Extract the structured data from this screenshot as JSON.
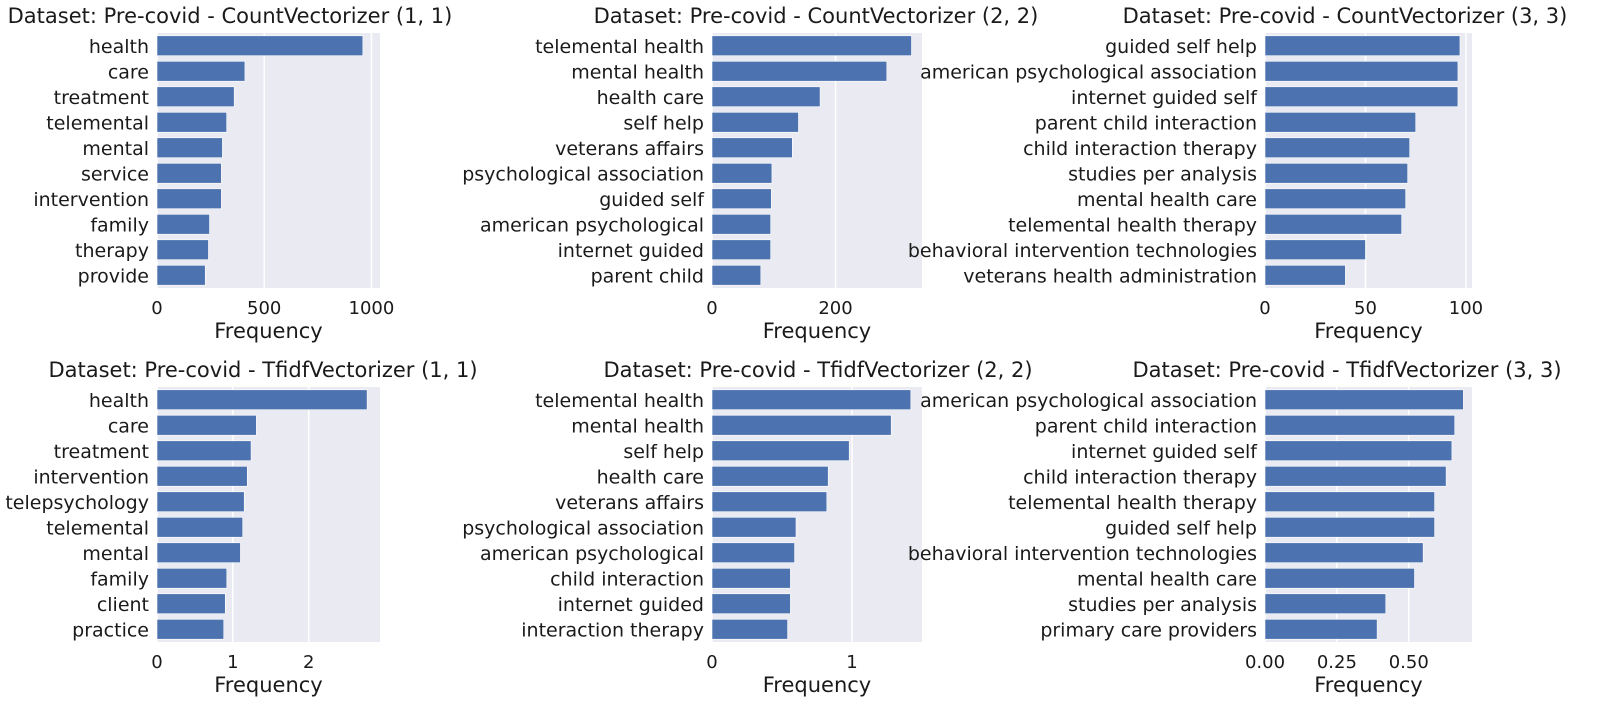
{
  "chart_data": [
    {
      "type": "bar",
      "orientation": "horizontal",
      "title": "Dataset: Pre-covid - CountVectorizer (1, 1)",
      "xlabel": "Frequency",
      "ylabel": "",
      "xlim": [
        0,
        1040
      ],
      "xticks": [
        0,
        500,
        1000
      ],
      "xtick_labels": [
        "0",
        "500",
        "1000"
      ],
      "categories": [
        "health",
        "care",
        "treatment",
        "telemental",
        "mental",
        "service",
        "intervention",
        "family",
        "therapy",
        "provide"
      ],
      "values": [
        960,
        410,
        360,
        325,
        305,
        300,
        300,
        245,
        240,
        225
      ],
      "grid": true
    },
    {
      "type": "bar",
      "orientation": "horizontal",
      "title": "Dataset: Pre-covid - CountVectorizer (2, 2)",
      "xlabel": "Frequency",
      "ylabel": "",
      "xlim": [
        0,
        340
      ],
      "xticks": [
        0,
        200
      ],
      "xtick_labels": [
        "0",
        "200"
      ],
      "categories": [
        "telemental health",
        "mental health",
        "health care",
        "self help",
        "veterans affairs",
        "psychological association",
        "guided self",
        "american psychological",
        "internet guided",
        "parent child"
      ],
      "values": [
        323,
        283,
        175,
        140,
        130,
        97,
        96,
        95,
        95,
        79
      ],
      "grid": true
    },
    {
      "type": "bar",
      "orientation": "horizontal",
      "title": "Dataset: Pre-covid - CountVectorizer (3, 3)",
      "xlabel": "Frequency",
      "ylabel": "",
      "xlim": [
        0,
        103
      ],
      "xticks": [
        0,
        50,
        100
      ],
      "xtick_labels": [
        "0",
        "50",
        "100"
      ],
      "categories": [
        "guided self help",
        "american psychological association",
        "internet guided self",
        "parent child interaction",
        "child interaction therapy",
        "studies per analysis",
        "mental health care",
        "telemental health therapy",
        "behavioral intervention technologies",
        "veterans health administration"
      ],
      "values": [
        97,
        96,
        96,
        75,
        72,
        71,
        70,
        68,
        50,
        40
      ],
      "grid": true
    },
    {
      "type": "bar",
      "orientation": "horizontal",
      "title": "Dataset: Pre-covid - TfidfVectorizer (1, 1)",
      "xlabel": "Frequency",
      "ylabel": "",
      "xlim": [
        0,
        2.94
      ],
      "xticks": [
        0,
        1,
        2
      ],
      "xtick_labels": [
        "0",
        "1",
        "2"
      ],
      "categories": [
        "health",
        "care",
        "treatment",
        "intervention",
        "telepsychology",
        "telemental",
        "mental",
        "family",
        "client",
        "practice"
      ],
      "values": [
        2.77,
        1.31,
        1.24,
        1.19,
        1.15,
        1.13,
        1.1,
        0.92,
        0.9,
        0.88
      ],
      "grid": true
    },
    {
      "type": "bar",
      "orientation": "horizontal",
      "title": "Dataset: Pre-covid - TfidfVectorizer (2, 2)",
      "xlabel": "Frequency",
      "ylabel": "",
      "xlim": [
        0,
        1.5
      ],
      "xticks": [
        0,
        1
      ],
      "xtick_labels": [
        "0",
        "1"
      ],
      "categories": [
        "telemental health",
        "mental health",
        "self help",
        "health care",
        "veterans affairs",
        "psychological association",
        "american psychological",
        "child interaction",
        "internet guided",
        "interaction therapy"
      ],
      "values": [
        1.42,
        1.28,
        0.98,
        0.83,
        0.82,
        0.6,
        0.59,
        0.56,
        0.56,
        0.54
      ],
      "grid": true
    },
    {
      "type": "bar",
      "orientation": "horizontal",
      "title": "Dataset: Pre-covid - TfidfVectorizer (3, 3)",
      "xlabel": "Frequency",
      "ylabel": "",
      "xlim": [
        0,
        0.72
      ],
      "xticks": [
        0,
        0.25,
        0.5
      ],
      "xtick_labels": [
        "0.00",
        "0.25",
        "0.50"
      ],
      "categories": [
        "american psychological association",
        "parent child interaction",
        "internet guided self",
        "child interaction therapy",
        "telemental health therapy",
        "guided self help",
        "behavioral intervention technologies",
        "mental health care",
        "studies per analysis",
        "primary care providers"
      ],
      "values": [
        0.69,
        0.66,
        0.65,
        0.63,
        0.59,
        0.59,
        0.55,
        0.52,
        0.42,
        0.39
      ],
      "grid": true
    }
  ],
  "colors": {
    "bar": "#4c72b0",
    "plot_background": "#eaeaf2",
    "grid": "#ffffff",
    "text": "#1a1a1a"
  }
}
